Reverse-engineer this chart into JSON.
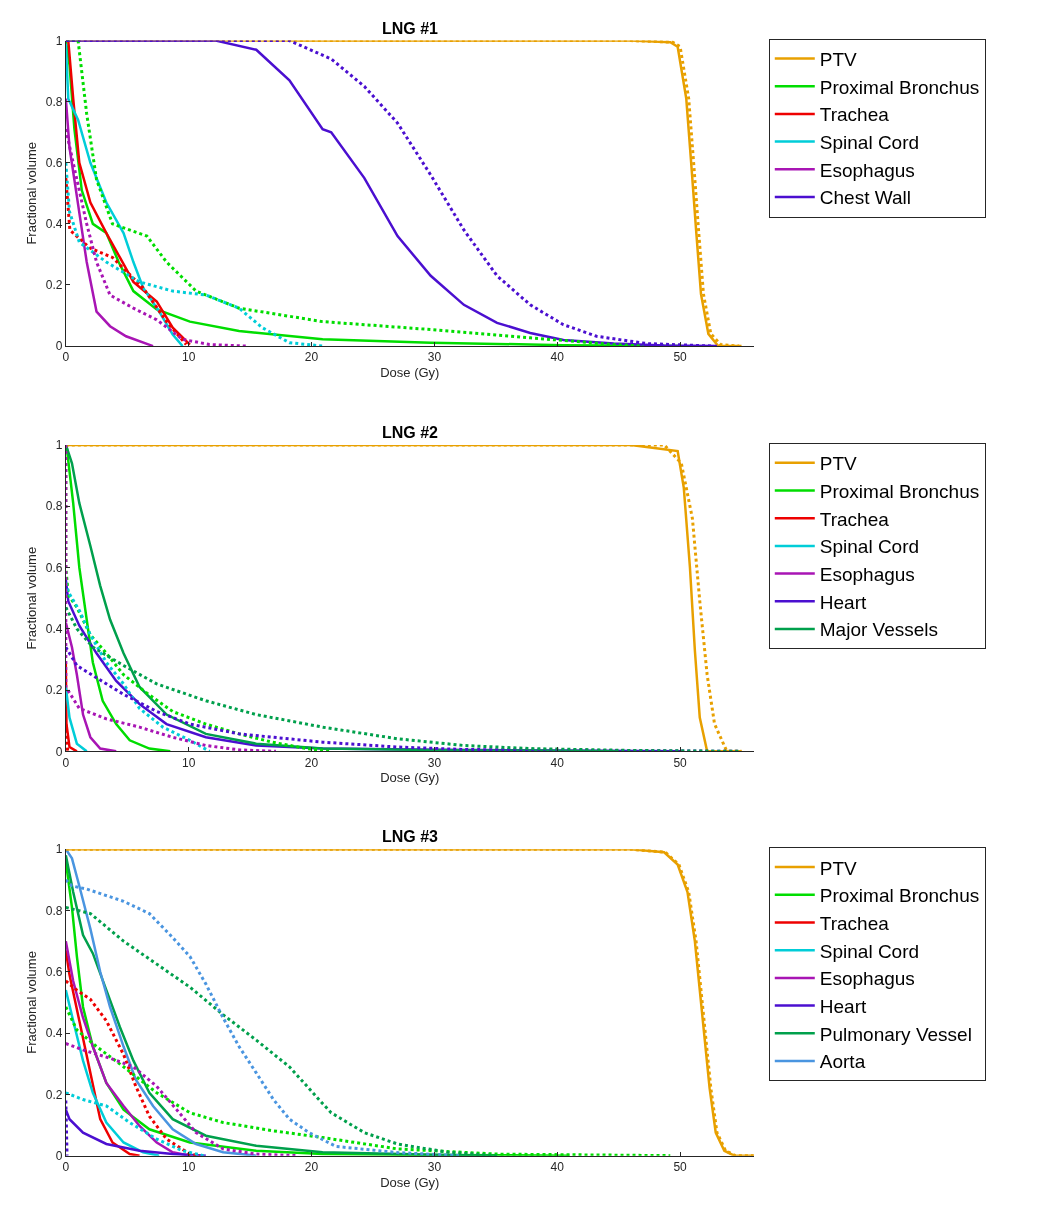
{
  "chart_data": [
    {
      "type": "line",
      "title": "LNG #1",
      "xlabel": "Dose (Gy)",
      "ylabel": "Fractional volume",
      "xlim": [
        0,
        56
      ],
      "xticks": [
        0,
        10,
        20,
        30,
        40,
        50
      ],
      "ylim": [
        0,
        1
      ],
      "yticks": [
        0,
        0.2,
        0.4,
        0.6,
        0.8,
        1
      ],
      "legend": "top right",
      "marker": "none",
      "series": [
        {
          "name": "PTV",
          "color": "#e8a000",
          "line_style": "solid",
          "x": [
            0,
            46,
            49.2,
            49.8,
            50.5,
            50.9,
            51.3,
            51.7,
            52.3,
            53.1,
            55
          ],
          "values": [
            1,
            1,
            0.995,
            0.98,
            0.81,
            0.6,
            0.38,
            0.17,
            0.04,
            0,
            0
          ]
        },
        {
          "name": "Proximal Bronchus",
          "color": "#00dd00",
          "line_style": "solid",
          "x": [
            0,
            0.3,
            0.7,
            1.3,
            2.2,
            3.3,
            4.3,
            5.5,
            7.4,
            10.1,
            14.1,
            20.9,
            29.7,
            40.5,
            50
          ],
          "values": [
            1,
            0.92,
            0.71,
            0.51,
            0.4,
            0.37,
            0.275,
            0.18,
            0.12,
            0.08,
            0.049,
            0.022,
            0.011,
            0.003,
            0
          ]
        },
        {
          "name": "Trachea",
          "color": "#ee0000",
          "line_style": "solid",
          "x": [
            0,
            0.2,
            0.6,
            1.1,
            2.0,
            3.3,
            4.4,
            5.5,
            7.4,
            8.7,
            10.1
          ],
          "values": [
            1,
            1,
            0.81,
            0.6,
            0.47,
            0.37,
            0.29,
            0.21,
            0.146,
            0.06,
            0.005
          ]
        },
        {
          "name": "Spinal Cord",
          "color": "#00cdd8",
          "line_style": "solid",
          "x": [
            0,
            0.2,
            1.0,
            2.0,
            3.3,
            4.7,
            5.5,
            6.3,
            7.6,
            8.7,
            9.5
          ],
          "values": [
            0.99,
            0.81,
            0.74,
            0.6,
            0.47,
            0.37,
            0.275,
            0.19,
            0.113,
            0.038,
            0
          ]
        },
        {
          "name": "Esophagus",
          "color": "#a815b4",
          "line_style": "solid",
          "x": [
            0,
            0.3,
            0.9,
            1.7,
            2.5,
            3.6,
            4.9,
            7.1
          ],
          "values": [
            0.81,
            0.65,
            0.49,
            0.275,
            0.113,
            0.065,
            0.032,
            0
          ]
        },
        {
          "name": "Chest Wall",
          "color": "#4b0fd0",
          "line_style": "solid",
          "x": [
            0,
            12.2,
            15.5,
            18.2,
            20.9,
            21.6,
            24.3,
            27.0,
            29.7,
            32.4,
            35.1,
            37.8,
            40.5,
            44.6,
            48.7,
            53
          ],
          "values": [
            1,
            1,
            0.97,
            0.87,
            0.71,
            0.7,
            0.55,
            0.36,
            0.23,
            0.135,
            0.076,
            0.043,
            0.02,
            0.008,
            0.002,
            0
          ]
        },
        {
          "color": "#e8a000",
          "line_style": "dotted",
          "x": [
            0,
            46,
            49.4,
            50.0,
            50.7,
            51.1,
            51.5,
            51.9,
            52.5,
            53.3,
            54.8
          ],
          "values": [
            1,
            1,
            0.995,
            0.98,
            0.81,
            0.6,
            0.38,
            0.17,
            0.04,
            0.005,
            0
          ]
        },
        {
          "color": "#00dd00",
          "line_style": "dotted",
          "x": [
            0,
            1.0,
            1.7,
            2.5,
            3.8,
            6.6,
            8.2,
            10.6,
            14.1,
            20.9,
            29.7,
            37.8,
            44.6,
            47
          ],
          "values": [
            1,
            1,
            0.76,
            0.545,
            0.4,
            0.36,
            0.275,
            0.18,
            0.124,
            0.08,
            0.054,
            0.027,
            0.005,
            0
          ]
        },
        {
          "color": "#ee0000",
          "line_style": "dotted",
          "x": [
            0,
            0.33,
            2.0,
            3.8,
            6.3,
            8.2,
            9.8
          ],
          "values": [
            0.55,
            0.38,
            0.32,
            0.29,
            0.19,
            0.08,
            0.005
          ]
        },
        {
          "color": "#00cdd8",
          "line_style": "dotted",
          "x": [
            0,
            0.3,
            1.1,
            3.3,
            6.0,
            8.7,
            11.4,
            14.1,
            16.0,
            18.2,
            20.9
          ],
          "values": [
            0.6,
            0.44,
            0.34,
            0.275,
            0.21,
            0.18,
            0.167,
            0.124,
            0.06,
            0.011,
            0
          ]
        },
        {
          "color": "#a815b4",
          "line_style": "dotted",
          "x": [
            0,
            0.9,
            1.7,
            2.5,
            3.6,
            5.5,
            7.4,
            9.5,
            11.7,
            14.7
          ],
          "values": [
            0.71,
            0.545,
            0.4,
            0.275,
            0.167,
            0.124,
            0.086,
            0.022,
            0.005,
            0
          ]
        },
        {
          "color": "#4b0fd0",
          "line_style": "dotted",
          "x": [
            0,
            18.2,
            21.6,
            24.3,
            27.0,
            29.7,
            32.4,
            35.1,
            37.8,
            40.5,
            43.2,
            47.3,
            52.7
          ],
          "values": [
            1,
            1,
            0.94,
            0.85,
            0.73,
            0.56,
            0.38,
            0.23,
            0.135,
            0.07,
            0.032,
            0.008,
            0
          ]
        }
      ]
    },
    {
      "type": "line",
      "title": "LNG #2",
      "xlabel": "Dose (Gy)",
      "ylabel": "Fractional volume",
      "xlim": [
        0,
        56
      ],
      "xticks": [
        0,
        10,
        20,
        30,
        40,
        50
      ],
      "ylim": [
        0,
        1
      ],
      "yticks": [
        0,
        0.2,
        0.4,
        0.6,
        0.8,
        1
      ],
      "legend": "top right",
      "marker": "none",
      "series": [
        {
          "name": "PTV",
          "color": "#e8a000",
          "line_style": "solid",
          "x": [
            0,
            46,
            49.8,
            50.3,
            50.8,
            51.2,
            51.6,
            52.2,
            55
          ],
          "values": [
            1,
            1,
            0.98,
            0.86,
            0.6,
            0.33,
            0.11,
            0,
            0
          ]
        },
        {
          "name": "Proximal Bronchus",
          "color": "#00dd00",
          "line_style": "solid",
          "x": [
            0,
            0.05,
            0.6,
            1.1,
            1.7,
            2.2,
            3.0,
            4.1,
            5.2,
            6.8,
            8.5
          ],
          "values": [
            1,
            1,
            0.81,
            0.6,
            0.43,
            0.29,
            0.165,
            0.089,
            0.036,
            0.009,
            0
          ]
        },
        {
          "name": "Trachea",
          "color": "#ee0000",
          "line_style": "solid",
          "x": [
            0,
            0.05,
            0.3,
            0.9
          ],
          "values": [
            0.29,
            0.09,
            0.014,
            0
          ]
        },
        {
          "name": "Spinal Cord",
          "color": "#00cdd8",
          "line_style": "solid",
          "x": [
            0,
            0.3,
            0.9,
            1.7
          ],
          "values": [
            0.21,
            0.11,
            0.025,
            0
          ]
        },
        {
          "name": "Esophagus",
          "color": "#a815b4",
          "line_style": "solid",
          "x": [
            0,
            0.5,
            0.9,
            1.4,
            2.0,
            2.8,
            4.1
          ],
          "values": [
            0.42,
            0.34,
            0.25,
            0.12,
            0.046,
            0.009,
            0
          ]
        },
        {
          "name": "Heart",
          "color": "#4b0fd0",
          "line_style": "solid",
          "x": [
            0,
            0.2,
            1.1,
            2.5,
            4.1,
            6.0,
            8.2,
            11.4,
            15.5,
            20.9,
            30,
            40,
            50
          ],
          "values": [
            0.56,
            0.49,
            0.41,
            0.32,
            0.23,
            0.154,
            0.089,
            0.046,
            0.019,
            0.009,
            0.005,
            0.003,
            0
          ]
        },
        {
          "name": "Major Vessels",
          "color": "#00a04c",
          "line_style": "solid",
          "x": [
            0,
            0.05,
            0.5,
            1.1,
            2.0,
            2.8,
            3.6,
            4.7,
            6.0,
            8.2,
            11.4,
            15.5,
            20.9,
            29.7,
            45
          ],
          "values": [
            1,
            0.995,
            0.94,
            0.81,
            0.67,
            0.54,
            0.43,
            0.32,
            0.21,
            0.12,
            0.057,
            0.025,
            0.009,
            0.004,
            0
          ]
        },
        {
          "color": "#e8a000",
          "line_style": "dotted",
          "x": [
            0,
            48.7,
            50.1,
            51.0,
            51.6,
            52.2,
            52.8,
            53.8,
            55
          ],
          "values": [
            1,
            1,
            0.94,
            0.76,
            0.49,
            0.25,
            0.09,
            0,
            0
          ]
        },
        {
          "color": "#00dd00",
          "line_style": "dotted",
          "x": [
            0,
            0,
            0.2,
            0.9,
            2.0,
            3.3,
            4.7,
            6.6,
            8.7,
            11.4,
            14.1,
            16.8,
            19.6,
            21.5
          ],
          "values": [
            1,
            0.6,
            0.51,
            0.47,
            0.38,
            0.32,
            0.25,
            0.19,
            0.13,
            0.089,
            0.057,
            0.03,
            0.009,
            0
          ]
        },
        {
          "color": "#ee0000",
          "line_style": "dotted",
          "x": [
            0,
            0.15
          ],
          "values": [
            0.09,
            0
          ]
        },
        {
          "color": "#00cdd8",
          "line_style": "dotted",
          "x": [
            0,
            0.2,
            1.1,
            2.0,
            3.3,
            4.7,
            6.0,
            7.9,
            10.1,
            11.7
          ],
          "values": [
            0.55,
            0.52,
            0.46,
            0.38,
            0.29,
            0.22,
            0.14,
            0.079,
            0.036,
            0
          ]
        },
        {
          "color": "#a815b4",
          "line_style": "dotted",
          "x": [
            0,
            0,
            1.1,
            3.3,
            6.0,
            8.7,
            11.4,
            14.1,
            17.1
          ],
          "values": [
            1,
            0.21,
            0.14,
            0.106,
            0.079,
            0.046,
            0.019,
            0.005,
            0
          ]
        },
        {
          "color": "#4b0fd0",
          "line_style": "dotted",
          "x": [
            0,
            0.9,
            2.5,
            4.7,
            7.4,
            10.1,
            14.1,
            20.9,
            27.0,
            32.4,
            43.2,
            54.7
          ],
          "values": [
            0.34,
            0.28,
            0.24,
            0.186,
            0.13,
            0.089,
            0.057,
            0.03,
            0.014,
            0.006,
            0.003,
            0
          ]
        },
        {
          "color": "#00a04c",
          "line_style": "dotted",
          "x": [
            0,
            0.9,
            2.2,
            4.7,
            7.4,
            11.4,
            15.5,
            20.9,
            27.0,
            32.4,
            37.8,
            45.9,
            54.9
          ],
          "values": [
            0.47,
            0.4,
            0.34,
            0.28,
            0.22,
            0.165,
            0.12,
            0.079,
            0.041,
            0.019,
            0.009,
            0.003,
            0
          ]
        }
      ]
    },
    {
      "type": "line",
      "title": "LNG #3",
      "xlabel": "Dose (Gy)",
      "ylabel": "Fractional volume",
      "xlim": [
        0,
        56
      ],
      "xticks": [
        0,
        10,
        20,
        30,
        40,
        50
      ],
      "ylim": [
        0,
        1
      ],
      "yticks": [
        0,
        0.2,
        0.4,
        0.6,
        0.8,
        1
      ],
      "legend": "top right",
      "marker": "none",
      "series": [
        {
          "name": "PTV",
          "color": "#e8a000",
          "line_style": "solid",
          "x": [
            0,
            46.0,
            48.7,
            49.8,
            50.6,
            51.2,
            51.6,
            52.0,
            52.4,
            52.9,
            53.6,
            54.4,
            56
          ],
          "values": [
            1,
            1,
            0.99,
            0.95,
            0.86,
            0.7,
            0.54,
            0.38,
            0.22,
            0.075,
            0.016,
            0,
            0
          ]
        },
        {
          "name": "Proximal Bronchus",
          "color": "#00dd00",
          "line_style": "solid",
          "x": [
            0,
            0.5,
            0.9,
            1.4,
            2.2,
            3.3,
            4.7,
            6.8,
            10.1,
            15.5,
            20.9,
            30,
            41
          ],
          "values": [
            0.96,
            0.81,
            0.65,
            0.485,
            0.356,
            0.237,
            0.15,
            0.086,
            0.043,
            0.016,
            0.005,
            0.002,
            0
          ]
        },
        {
          "name": "Trachea",
          "color": "#ee0000",
          "line_style": "solid",
          "x": [
            0,
            0.3,
            1.1,
            2.0,
            2.8,
            3.8,
            5.2,
            6.0
          ],
          "values": [
            0.67,
            0.59,
            0.44,
            0.27,
            0.119,
            0.043,
            0.005,
            0
          ]
        },
        {
          "name": "Spinal Cord",
          "color": "#00cdd8",
          "line_style": "solid",
          "x": [
            0,
            0.6,
            1.4,
            2.2,
            3.3,
            4.7,
            6.3,
            7.6
          ],
          "values": [
            0.54,
            0.44,
            0.31,
            0.205,
            0.108,
            0.043,
            0.011,
            0
          ]
        },
        {
          "name": "Esophagus",
          "color": "#a815b4",
          "line_style": "solid",
          "x": [
            0,
            0.6,
            1.4,
            2.2,
            3.3,
            4.7,
            6.0,
            7.4,
            8.7,
            10.1
          ],
          "values": [
            0.7,
            0.57,
            0.45,
            0.356,
            0.237,
            0.162,
            0.097,
            0.043,
            0.011,
            0
          ]
        },
        {
          "name": "Heart",
          "color": "#4b0fd0",
          "line_style": "solid",
          "x": [
            0,
            0.3,
            1.4,
            3.3,
            6.0,
            8.7,
            11.4
          ],
          "values": [
            0.15,
            0.119,
            0.075,
            0.038,
            0.016,
            0.005,
            0
          ]
        },
        {
          "name": "Pulmonary Vessel",
          "color": "#00a04c",
          "line_style": "solid",
          "x": [
            0,
            0.6,
            1.4,
            2.2,
            3.3,
            4.4,
            5.5,
            6.8,
            8.7,
            11.4,
            15.5,
            20.9,
            30,
            35
          ],
          "values": [
            0.98,
            0.86,
            0.72,
            0.66,
            0.54,
            0.42,
            0.31,
            0.205,
            0.119,
            0.065,
            0.032,
            0.011,
            0.003,
            0
          ]
        },
        {
          "name": "Aorta",
          "color": "#4a95e0",
          "line_style": "solid",
          "x": [
            0,
            0.5,
            1.1,
            2.0,
            2.8,
            3.6,
            4.7,
            5.7,
            7.1,
            8.7,
            10.6,
            12.8,
            15.5
          ],
          "values": [
            1,
            0.97,
            0.88,
            0.74,
            0.6,
            0.485,
            0.356,
            0.248,
            0.162,
            0.086,
            0.038,
            0.011,
            0
          ]
        },
        {
          "color": "#e8a000",
          "line_style": "dotted",
          "x": [
            0,
            46.0,
            48.8,
            49.9,
            50.7,
            51.3,
            51.7,
            52.1,
            52.5,
            53.0,
            53.7,
            54.5,
            56
          ],
          "values": [
            1,
            1,
            0.99,
            0.95,
            0.86,
            0.7,
            0.54,
            0.38,
            0.22,
            0.075,
            0.016,
            0,
            0
          ]
        },
        {
          "color": "#00dd00",
          "line_style": "dotted",
          "x": [
            0,
            0.9,
            2.5,
            4.7,
            7.4,
            10.1,
            12.8,
            16.9,
            20.9,
            27.0,
            35.1,
            49.2
          ],
          "values": [
            0.485,
            0.41,
            0.356,
            0.29,
            0.205,
            0.14,
            0.108,
            0.081,
            0.059,
            0.022,
            0.005,
            0
          ]
        },
        {
          "color": "#ee0000",
          "line_style": "dotted",
          "x": [
            0,
            0.9,
            2.0,
            3.3,
            4.7,
            5.7,
            6.8,
            8.2,
            10.1,
            10.9
          ],
          "values": [
            0.57,
            0.54,
            0.51,
            0.44,
            0.33,
            0.226,
            0.129,
            0.054,
            0.005,
            0
          ]
        },
        {
          "color": "#00cdd8",
          "line_style": "dotted",
          "x": [
            0,
            1.4,
            3.3,
            5.2,
            7.4,
            9.5,
            11.2
          ],
          "values": [
            0.205,
            0.183,
            0.162,
            0.108,
            0.054,
            0.016,
            0
          ]
        },
        {
          "color": "#a815b4",
          "line_style": "dotted",
          "x": [
            0,
            1.4,
            3.6,
            5.5,
            7.4,
            9.0,
            10.6,
            12.8,
            15.5,
            18.8
          ],
          "values": [
            0.366,
            0.345,
            0.318,
            0.29,
            0.226,
            0.151,
            0.075,
            0.022,
            0.005,
            0
          ]
        },
        {
          "color": "#4b0fd0",
          "line_style": "dotted",
          "x": [
            0,
            0.1
          ],
          "values": [
            0.18,
            0
          ]
        },
        {
          "color": "#00a04c",
          "line_style": "dotted",
          "x": [
            0,
            2.0,
            4.7,
            7.4,
            10.1,
            12.8,
            15.5,
            18.2,
            20.9,
            21.6,
            24.3,
            27.0,
            31.1,
            35.1
          ],
          "values": [
            0.81,
            0.79,
            0.7,
            0.625,
            0.55,
            0.46,
            0.377,
            0.29,
            0.17,
            0.14,
            0.075,
            0.038,
            0.011,
            0
          ]
        },
        {
          "color": "#4a95e0",
          "line_style": "dotted",
          "x": [
            0,
            0.5,
            1.7,
            4.7,
            6.8,
            8.5,
            10.1,
            11.4,
            12.8,
            14.1,
            15.5,
            16.9,
            18.2,
            19.8,
            22.0,
            27.0,
            32.0
          ],
          "values": [
            0.9,
            0.88,
            0.87,
            0.83,
            0.79,
            0.72,
            0.65,
            0.56,
            0.45,
            0.356,
            0.27,
            0.183,
            0.119,
            0.075,
            0.03,
            0.01,
            0
          ]
        }
      ]
    }
  ]
}
